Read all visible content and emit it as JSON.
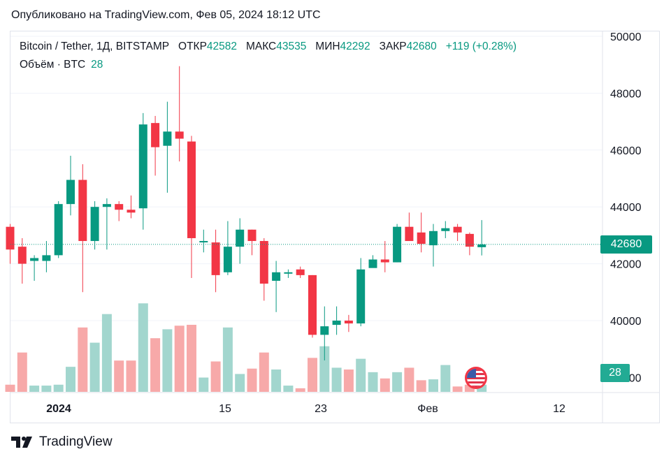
{
  "published": "Опубликовано на TradingView.com, Фев 05, 2024 18:12 UTC",
  "legend": {
    "symbol": "Bitcoin / Tether, 1Д, BITSTAMP",
    "open_label": "ОТКР",
    "open": "42582",
    "high_label": "МАКС",
    "high": "43535",
    "low_label": "МИН",
    "low": "42292",
    "close_label": "ЗАКР",
    "close": "42680",
    "change": "+119 (+0.28%)",
    "volume_label": "Объём · BTC",
    "volume": "28"
  },
  "price_tag": "42680",
  "volume_tag": "28",
  "brand": "TradingView",
  "colors": {
    "up": "#089981",
    "down": "#f23645",
    "vol_up": "#a2d6ce",
    "vol_down": "#f7a9a9"
  },
  "chart_data": {
    "type": "candlestick",
    "symbol": "BTC/USDT",
    "y_ticks": [
      40000,
      42000,
      44000,
      46000,
      48000,
      50000
    ],
    "x_ticks": [
      "2024",
      "15",
      "23",
      "Фев",
      "12"
    ],
    "ylim": [
      38000,
      50000
    ],
    "candles": [
      {
        "o": 43300,
        "h": 43400,
        "l": 42000,
        "c": 42500
      },
      {
        "o": 42600,
        "h": 42900,
        "l": 41300,
        "c": 42000
      },
      {
        "o": 42100,
        "h": 42300,
        "l": 41400,
        "c": 42200
      },
      {
        "o": 42100,
        "h": 42800,
        "l": 41700,
        "c": 42300
      },
      {
        "o": 42300,
        "h": 44200,
        "l": 42200,
        "c": 44100
      },
      {
        "o": 44100,
        "h": 45800,
        "l": 43700,
        "c": 44950
      },
      {
        "o": 44950,
        "h": 45500,
        "l": 41000,
        "c": 42800
      },
      {
        "o": 42800,
        "h": 44200,
        "l": 42500,
        "c": 44000
      },
      {
        "o": 44000,
        "h": 44300,
        "l": 42500,
        "c": 44100
      },
      {
        "o": 44100,
        "h": 44200,
        "l": 43500,
        "c": 43900
      },
      {
        "o": 43900,
        "h": 44400,
        "l": 43600,
        "c": 43800
      },
      {
        "o": 43950,
        "h": 47300,
        "l": 43200,
        "c": 46900
      },
      {
        "o": 46950,
        "h": 47200,
        "l": 45100,
        "c": 46100
      },
      {
        "o": 46150,
        "h": 47700,
        "l": 44500,
        "c": 46650
      },
      {
        "o": 46650,
        "h": 48950,
        "l": 45600,
        "c": 46400
      },
      {
        "o": 46300,
        "h": 46500,
        "l": 41500,
        "c": 42900
      },
      {
        "o": 42750,
        "h": 43200,
        "l": 42400,
        "c": 42800
      },
      {
        "o": 42750,
        "h": 43200,
        "l": 41000,
        "c": 41600
      },
      {
        "o": 41700,
        "h": 43500,
        "l": 41600,
        "c": 42600
      },
      {
        "o": 42600,
        "h": 43600,
        "l": 42000,
        "c": 43200
      },
      {
        "o": 43200,
        "h": 43200,
        "l": 42300,
        "c": 42800
      },
      {
        "o": 42800,
        "h": 42900,
        "l": 40700,
        "c": 41300
      },
      {
        "o": 41400,
        "h": 42100,
        "l": 40300,
        "c": 41700
      },
      {
        "o": 41700,
        "h": 41800,
        "l": 41500,
        "c": 41700
      },
      {
        "o": 41800,
        "h": 41900,
        "l": 41500,
        "c": 41600
      },
      {
        "o": 41600,
        "h": 41600,
        "l": 39400,
        "c": 39500
      },
      {
        "o": 39500,
        "h": 40500,
        "l": 38600,
        "c": 39800
      },
      {
        "o": 39850,
        "h": 40500,
        "l": 39500,
        "c": 40000
      },
      {
        "o": 40000,
        "h": 40200,
        "l": 39600,
        "c": 39900
      },
      {
        "o": 39900,
        "h": 42200,
        "l": 39800,
        "c": 41800
      },
      {
        "o": 41850,
        "h": 42300,
        "l": 41900,
        "c": 42150
      },
      {
        "o": 42150,
        "h": 42800,
        "l": 41700,
        "c": 42050
      },
      {
        "o": 42050,
        "h": 43400,
        "l": 42050,
        "c": 43300
      },
      {
        "o": 43300,
        "h": 43800,
        "l": 42900,
        "c": 42800
      },
      {
        "o": 43100,
        "h": 43800,
        "l": 42400,
        "c": 42700
      },
      {
        "o": 42650,
        "h": 43400,
        "l": 41900,
        "c": 43150
      },
      {
        "o": 43150,
        "h": 43500,
        "l": 42900,
        "c": 43250
      },
      {
        "o": 43300,
        "h": 43400,
        "l": 42800,
        "c": 43100
      },
      {
        "o": 43050,
        "h": 43100,
        "l": 42300,
        "c": 42600
      },
      {
        "o": 42582,
        "h": 43535,
        "l": 42292,
        "c": 42680
      }
    ],
    "volume_level": [
      0.08,
      0.44,
      0.07,
      0.07,
      0.08,
      0.28,
      0.72,
      0.55,
      0.87,
      0.35,
      0.35,
      0.99,
      0.6,
      0.7,
      0.74,
      0.75,
      0.16,
      0.34,
      0.72,
      0.2,
      0.26,
      0.44,
      0.25,
      0.07,
      0.04,
      0.38,
      0.51,
      0.27,
      0.25,
      0.37,
      0.22,
      0.15,
      0.22,
      0.27,
      0.13,
      0.14,
      0.3,
      0.06,
      0.08,
      0.08
    ]
  }
}
